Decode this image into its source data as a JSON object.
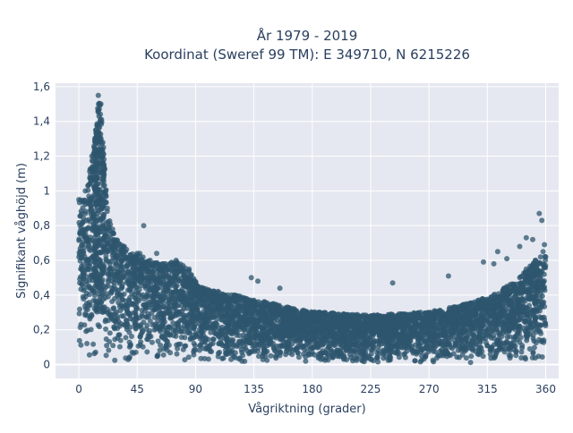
{
  "chart_data": {
    "type": "scatter",
    "title_lines": [
      "År 1979 - 2019",
      "Koordinat (Sweref 99 TM): E 349710, N 6215226"
    ],
    "xlabel": "Vågriktning (grader)",
    "ylabel": "Signifikant våghöjd (m)",
    "xlim": [
      -18,
      370
    ],
    "ylim": [
      -0.08,
      1.62
    ],
    "x_ticks": [
      0,
      45,
      90,
      135,
      180,
      225,
      270,
      315,
      360
    ],
    "x_tick_labels": [
      "0",
      "45",
      "90",
      "135",
      "180",
      "225",
      "270",
      "315",
      "360"
    ],
    "y_ticks": [
      0,
      0.2,
      0.4,
      0.6,
      0.8,
      1,
      1.2,
      1.4,
      1.6
    ],
    "y_tick_labels": [
      "0",
      "0,2",
      "0,4",
      "0,6",
      "0,8",
      "1",
      "1,2",
      "1,4",
      "1,6"
    ],
    "grid": true,
    "marker_color": "#2e556e",
    "plot_bg": "#e5e8f0",
    "series": [
      {
        "envelope_points": [
          {
            "x": 0,
            "y": 0.95
          },
          {
            "x": 5,
            "y": 1.0
          },
          {
            "x": 10,
            "y": 1.2
          },
          {
            "x": 13,
            "y": 1.35
          },
          {
            "x": 15,
            "y": 1.55
          },
          {
            "x": 17,
            "y": 1.5
          },
          {
            "x": 19,
            "y": 1.25
          },
          {
            "x": 22,
            "y": 0.9
          },
          {
            "x": 26,
            "y": 0.78
          },
          {
            "x": 35,
            "y": 0.68
          },
          {
            "x": 45,
            "y": 0.64
          },
          {
            "x": 55,
            "y": 0.6
          },
          {
            "x": 65,
            "y": 0.58
          },
          {
            "x": 75,
            "y": 0.6
          },
          {
            "x": 85,
            "y": 0.55
          },
          {
            "x": 92,
            "y": 0.45
          },
          {
            "x": 100,
            "y": 0.43
          },
          {
            "x": 120,
            "y": 0.4
          },
          {
            "x": 135,
            "y": 0.37
          },
          {
            "x": 150,
            "y": 0.35
          },
          {
            "x": 165,
            "y": 0.32
          },
          {
            "x": 180,
            "y": 0.3
          },
          {
            "x": 200,
            "y": 0.29
          },
          {
            "x": 225,
            "y": 0.28
          },
          {
            "x": 250,
            "y": 0.29
          },
          {
            "x": 270,
            "y": 0.3
          },
          {
            "x": 290,
            "y": 0.33
          },
          {
            "x": 305,
            "y": 0.36
          },
          {
            "x": 320,
            "y": 0.4
          },
          {
            "x": 330,
            "y": 0.45
          },
          {
            "x": 340,
            "y": 0.5
          },
          {
            "x": 345,
            "y": 0.55
          },
          {
            "x": 352,
            "y": 0.6
          },
          {
            "x": 358,
            "y": 0.65
          },
          {
            "x": 360,
            "y": 0.62
          }
        ],
        "outliers": [
          {
            "x": 47,
            "y": 0.64
          },
          {
            "x": 50,
            "y": 0.8
          },
          {
            "x": 60,
            "y": 0.64
          },
          {
            "x": 133,
            "y": 0.5
          },
          {
            "x": 138,
            "y": 0.48
          },
          {
            "x": 155,
            "y": 0.44
          },
          {
            "x": 242,
            "y": 0.47
          },
          {
            "x": 285,
            "y": 0.51
          },
          {
            "x": 312,
            "y": 0.59
          },
          {
            "x": 320,
            "y": 0.58
          },
          {
            "x": 323,
            "y": 0.65
          },
          {
            "x": 330,
            "y": 0.61
          },
          {
            "x": 340,
            "y": 0.68
          },
          {
            "x": 345,
            "y": 0.73
          },
          {
            "x": 350,
            "y": 0.72
          },
          {
            "x": 355,
            "y": 0.87
          },
          {
            "x": 357,
            "y": 0.83
          },
          {
            "x": 359,
            "y": 0.69
          }
        ]
      }
    ]
  }
}
